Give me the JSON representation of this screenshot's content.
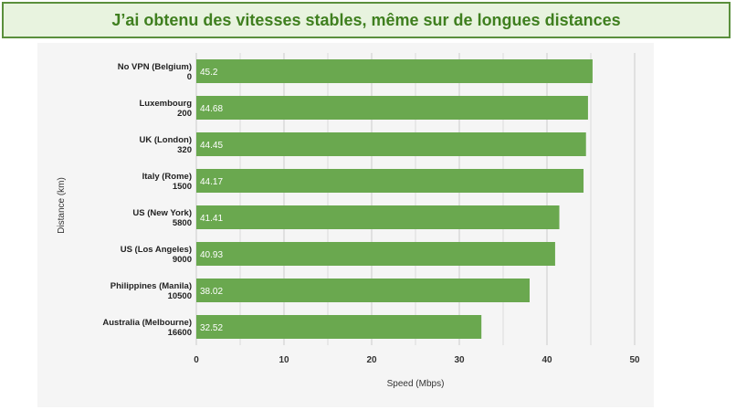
{
  "banner": {
    "text": "J’ai obtenu des vitesses stables, même sur de longues distances"
  },
  "colors": {
    "bar": "#6aa84f",
    "banner_border": "#5a8f3c",
    "banner_bg": "#e8f3df",
    "banner_text": "#3f7f1f",
    "grid": "#cccccc",
    "panel_bg": "#f5f5f5"
  },
  "chart_data": {
    "type": "bar",
    "orientation": "horizontal",
    "categories": [
      [
        "No VPN (Belgium)",
        "0"
      ],
      [
        "Luxembourg",
        "200"
      ],
      [
        "UK (London)",
        "320"
      ],
      [
        "Italy (Rome)",
        "1500"
      ],
      [
        "US (New York)",
        "5800"
      ],
      [
        "US (Los Angeles)",
        "9000"
      ],
      [
        "Philippines (Manila)",
        "10500"
      ],
      [
        "Australia (Melbourne)",
        "16600"
      ]
    ],
    "values": [
      45.2,
      44.68,
      44.45,
      44.17,
      41.41,
      40.93,
      38.02,
      32.52
    ],
    "value_labels": [
      "45.2",
      "44.68",
      "44.45",
      "44.17",
      "41.41",
      "40.93",
      "38.02",
      "32.52"
    ],
    "xlabel": "Speed (Mbps)",
    "ylabel": "Distance (km)",
    "xlim": [
      0,
      50
    ],
    "xticks": [
      "0",
      "10",
      "20",
      "30",
      "40",
      "50"
    ],
    "grid": "vertical"
  }
}
